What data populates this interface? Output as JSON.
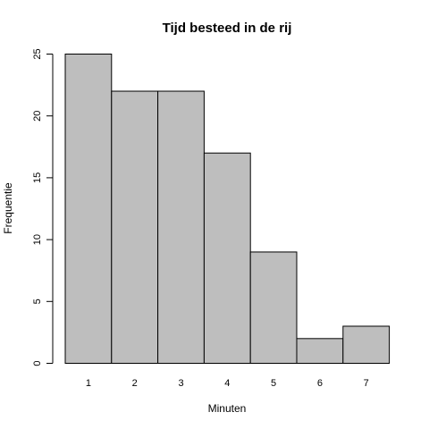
{
  "chart_data": {
    "type": "bar",
    "title": "Tijd besteed in de rij",
    "xlabel": "Minuten",
    "ylabel": "Frequentie",
    "categories": [
      "1",
      "2",
      "3",
      "4",
      "5",
      "6",
      "7"
    ],
    "values": [
      25,
      22,
      22,
      17,
      9,
      2,
      3
    ],
    "ylim": [
      0,
      25
    ],
    "yticks": [
      "0",
      "5",
      "10",
      "15",
      "20",
      "25"
    ],
    "bar_color": "#bebebe",
    "edge_color": "#000000",
    "grid": false,
    "legend": "none"
  }
}
